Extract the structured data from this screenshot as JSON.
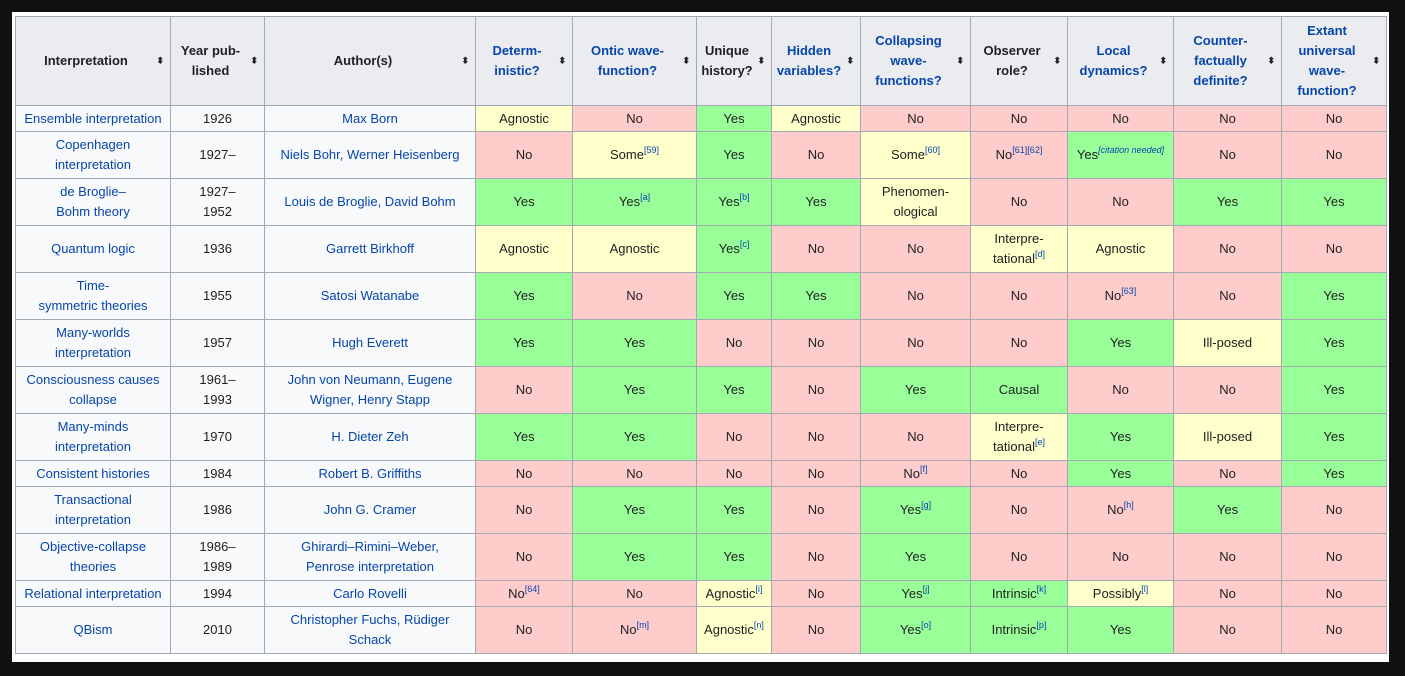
{
  "headers": [
    {
      "label": "Interpretation",
      "link": false
    },
    {
      "label": "Year pub-\nlished",
      "link": false
    },
    {
      "label": "Author(s)",
      "link": false
    },
    {
      "label": "Determ-\ninistic?",
      "link": true
    },
    {
      "label": "Ontic wave-\nfunction?",
      "link": true
    },
    {
      "label": "Unique\nhistory?",
      "link": false
    },
    {
      "label": "Hidden\nvariables?",
      "link": true
    },
    {
      "label": "Collapsing\nwave-\nfunctions?",
      "link": true
    },
    {
      "label": "Observer\nrole?",
      "link": false
    },
    {
      "label": "Local\ndynamics?",
      "link": true
    },
    {
      "label": "Counter-\nfactually\ndefinite?",
      "link": true
    },
    {
      "label": "Extant\nuniversal\nwave-\nfunction?",
      "link": true,
      "mixed": true
    }
  ],
  "sort_icon": "⬍",
  "rows": [
    {
      "name": "Ensemble interpretation",
      "year": "1926",
      "authors": "Max Born",
      "cells": [
        [
          "Agnostic",
          "",
          "g"
        ],
        [
          "No",
          "",
          "n"
        ],
        [
          "Yes",
          "",
          "y"
        ],
        [
          "Agnostic",
          "",
          "g"
        ],
        [
          "No",
          "",
          "n"
        ],
        [
          "No",
          "",
          "n"
        ],
        [
          "No",
          "",
          "n"
        ],
        [
          "No",
          "",
          "n"
        ],
        [
          "No",
          "",
          "n"
        ]
      ]
    },
    {
      "name": "Copenhagen\ninterpretation",
      "year": "1927–",
      "authors": "Niels Bohr, Werner Heisenberg",
      "cells": [
        [
          "No",
          "",
          "n"
        ],
        [
          "Some",
          "[59]",
          "g"
        ],
        [
          "Yes",
          "",
          "y"
        ],
        [
          "No",
          "",
          "n"
        ],
        [
          "Some",
          "[60]",
          "g"
        ],
        [
          "No",
          "[61][62]",
          "n"
        ],
        [
          "Yes",
          "[citation needed]",
          "y"
        ],
        [
          "No",
          "",
          "n"
        ],
        [
          "No",
          "",
          "n"
        ]
      ]
    },
    {
      "name": "de Broglie–\nBohm theory",
      "year": "1927–\n1952",
      "authors": "Louis de Broglie, David Bohm",
      "cells": [
        [
          "Yes",
          "",
          "y"
        ],
        [
          "Yes",
          "[a]",
          "y"
        ],
        [
          "Yes",
          "[b]",
          "y"
        ],
        [
          "Yes",
          "",
          "y"
        ],
        [
          "Phenomen-\nological",
          "",
          "g"
        ],
        [
          "No",
          "",
          "n"
        ],
        [
          "No",
          "",
          "n"
        ],
        [
          "Yes",
          "",
          "y"
        ],
        [
          "Yes",
          "",
          "y"
        ]
      ]
    },
    {
      "name": "Quantum logic",
      "year": "1936",
      "authors": "Garrett Birkhoff",
      "cells": [
        [
          "Agnostic",
          "",
          "g"
        ],
        [
          "Agnostic",
          "",
          "g"
        ],
        [
          "Yes",
          "[c]",
          "y"
        ],
        [
          "No",
          "",
          "n"
        ],
        [
          "No",
          "",
          "n"
        ],
        [
          "Interpre-\ntational",
          "[d]",
          "g"
        ],
        [
          "Agnostic",
          "",
          "g"
        ],
        [
          "No",
          "",
          "n"
        ],
        [
          "No",
          "",
          "n"
        ]
      ]
    },
    {
      "name": "Time-\nsymmetric theories",
      "year": "1955",
      "authors": "Satosi Watanabe",
      "cells": [
        [
          "Yes",
          "",
          "y"
        ],
        [
          "No",
          "",
          "n"
        ],
        [
          "Yes",
          "",
          "y"
        ],
        [
          "Yes",
          "",
          "y"
        ],
        [
          "No",
          "",
          "n"
        ],
        [
          "No",
          "",
          "n"
        ],
        [
          "No",
          "[63]",
          "n"
        ],
        [
          "No",
          "",
          "n"
        ],
        [
          "Yes",
          "",
          "y"
        ]
      ]
    },
    {
      "name": "Many-worlds\ninterpretation",
      "year": "1957",
      "authors": "Hugh Everett",
      "cells": [
        [
          "Yes",
          "",
          "y"
        ],
        [
          "Yes",
          "",
          "y"
        ],
        [
          "No",
          "",
          "n"
        ],
        [
          "No",
          "",
          "n"
        ],
        [
          "No",
          "",
          "n"
        ],
        [
          "No",
          "",
          "n"
        ],
        [
          "Yes",
          "",
          "y"
        ],
        [
          "Ill-posed",
          "",
          "g"
        ],
        [
          "Yes",
          "",
          "y"
        ]
      ]
    },
    {
      "name": "Consciousness causes\ncollapse",
      "year": "1961–\n1993",
      "authors": "John von Neumann, Eugene\nWigner, Henry Stapp",
      "cells": [
        [
          "No",
          "",
          "n"
        ],
        [
          "Yes",
          "",
          "y"
        ],
        [
          "Yes",
          "",
          "y"
        ],
        [
          "No",
          "",
          "n"
        ],
        [
          "Yes",
          "",
          "y"
        ],
        [
          "Causal",
          "",
          "y"
        ],
        [
          "No",
          "",
          "n"
        ],
        [
          "No",
          "",
          "n"
        ],
        [
          "Yes",
          "",
          "y"
        ]
      ]
    },
    {
      "name": "Many-minds\ninterpretation",
      "year": "1970",
      "authors": "H. Dieter Zeh",
      "cells": [
        [
          "Yes",
          "",
          "y"
        ],
        [
          "Yes",
          "",
          "y"
        ],
        [
          "No",
          "",
          "n"
        ],
        [
          "No",
          "",
          "n"
        ],
        [
          "No",
          "",
          "n"
        ],
        [
          "Interpre-\ntational",
          "[e]",
          "g"
        ],
        [
          "Yes",
          "",
          "y"
        ],
        [
          "Ill-posed",
          "",
          "g"
        ],
        [
          "Yes",
          "",
          "y"
        ]
      ]
    },
    {
      "name": "Consistent histories",
      "year": "1984",
      "authors": "Robert B. Griffiths",
      "cells": [
        [
          "No",
          "",
          "n"
        ],
        [
          "No",
          "",
          "n"
        ],
        [
          "No",
          "",
          "n"
        ],
        [
          "No",
          "",
          "n"
        ],
        [
          "No",
          "[f]",
          "n"
        ],
        [
          "No",
          "",
          "n"
        ],
        [
          "Yes",
          "",
          "y"
        ],
        [
          "No",
          "",
          "n"
        ],
        [
          "Yes",
          "",
          "y"
        ]
      ]
    },
    {
      "name": "Transactional\ninterpretation",
      "year": "1986",
      "authors": "John G. Cramer",
      "cells": [
        [
          "No",
          "",
          "n"
        ],
        [
          "Yes",
          "",
          "y"
        ],
        [
          "Yes",
          "",
          "y"
        ],
        [
          "No",
          "",
          "n"
        ],
        [
          "Yes",
          "[g]",
          "y"
        ],
        [
          "No",
          "",
          "n"
        ],
        [
          "No",
          "[h]",
          "n"
        ],
        [
          "Yes",
          "",
          "y"
        ],
        [
          "No",
          "",
          "n"
        ]
      ]
    },
    {
      "name": "Objective-collapse\ntheories",
      "year": "1986–\n1989",
      "authors": "Ghirardi–Rimini–Weber,\nPenrose interpretation",
      "cells": [
        [
          "No",
          "",
          "n"
        ],
        [
          "Yes",
          "",
          "y"
        ],
        [
          "Yes",
          "",
          "y"
        ],
        [
          "No",
          "",
          "n"
        ],
        [
          "Yes",
          "",
          "y"
        ],
        [
          "No",
          "",
          "n"
        ],
        [
          "No",
          "",
          "n"
        ],
        [
          "No",
          "",
          "n"
        ],
        [
          "No",
          "",
          "n"
        ]
      ]
    },
    {
      "name": "Relational interpretation",
      "year": "1994",
      "authors": "Carlo Rovelli",
      "cells": [
        [
          "No",
          "[64]",
          "n"
        ],
        [
          "No",
          "",
          "n"
        ],
        [
          "Agnostic",
          "[i]",
          "g"
        ],
        [
          "No",
          "",
          "n"
        ],
        [
          "Yes",
          "[j]",
          "y"
        ],
        [
          "Intrinsic",
          "[k]",
          "y"
        ],
        [
          "Possibly",
          "[l]",
          "g"
        ],
        [
          "No",
          "",
          "n"
        ],
        [
          "No",
          "",
          "n"
        ]
      ]
    },
    {
      "name": "QBism",
      "year": "2010",
      "authors": "Christopher Fuchs, Rüdiger\nSchack",
      "cells": [
        [
          "No",
          "",
          "n"
        ],
        [
          "No",
          "[m]",
          "n"
        ],
        [
          "Agnostic",
          "[n]",
          "g"
        ],
        [
          "No",
          "",
          "n"
        ],
        [
          "Yes",
          "[o]",
          "y"
        ],
        [
          "Intrinsic",
          "[p]",
          "y"
        ],
        [
          "Yes",
          "",
          "y"
        ],
        [
          "No",
          "",
          "n"
        ],
        [
          "No",
          "",
          "n"
        ]
      ]
    }
  ]
}
